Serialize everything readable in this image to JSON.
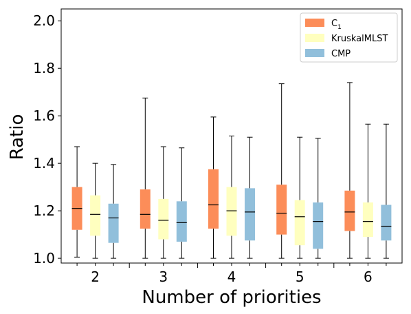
{
  "chart_data": {
    "type": "box",
    "xlabel": "Number of priorities",
    "ylabel": "Ratio",
    "ylim": [
      0.98,
      2.05
    ],
    "yticks": [
      "1.0",
      "1.2",
      "1.4",
      "1.6",
      "1.8",
      "2.0"
    ],
    "categories": [
      "2",
      "3",
      "4",
      "5",
      "6"
    ],
    "legend": {
      "placement": "top-right"
    },
    "series": [
      {
        "name": "C",
        "name_subscript": "1",
        "color": "#fc8d59",
        "boxes": [
          {
            "whislo": 1.005,
            "q1": 1.12,
            "med": 1.21,
            "q3": 1.3,
            "whishi": 1.47
          },
          {
            "whislo": 1.0,
            "q1": 1.125,
            "med": 1.185,
            "q3": 1.29,
            "whishi": 1.675
          },
          {
            "whislo": 1.0,
            "q1": 1.125,
            "med": 1.225,
            "q3": 1.375,
            "whishi": 1.595
          },
          {
            "whislo": 1.0,
            "q1": 1.1,
            "med": 1.19,
            "q3": 1.31,
            "whishi": 1.735
          },
          {
            "whislo": 1.0,
            "q1": 1.115,
            "med": 1.195,
            "q3": 1.285,
            "whishi": 1.74
          }
        ]
      },
      {
        "name": "KruskalMLST",
        "color": "#ffffbf",
        "boxes": [
          {
            "whislo": 1.0,
            "q1": 1.095,
            "med": 1.185,
            "q3": 1.265,
            "whishi": 1.4
          },
          {
            "whislo": 1.0,
            "q1": 1.08,
            "med": 1.16,
            "q3": 1.25,
            "whishi": 1.47
          },
          {
            "whislo": 1.0,
            "q1": 1.095,
            "med": 1.2,
            "q3": 1.3,
            "whishi": 1.515
          },
          {
            "whislo": 1.0,
            "q1": 1.055,
            "med": 1.175,
            "q3": 1.245,
            "whishi": 1.51
          },
          {
            "whislo": 1.0,
            "q1": 1.09,
            "med": 1.155,
            "q3": 1.235,
            "whishi": 1.565
          }
        ]
      },
      {
        "name": "CMP",
        "color": "#91bfdb",
        "boxes": [
          {
            "whislo": 1.0,
            "q1": 1.065,
            "med": 1.17,
            "q3": 1.23,
            "whishi": 1.395
          },
          {
            "whislo": 1.0,
            "q1": 1.07,
            "med": 1.15,
            "q3": 1.24,
            "whishi": 1.465
          },
          {
            "whislo": 1.0,
            "q1": 1.075,
            "med": 1.195,
            "q3": 1.295,
            "whishi": 1.51
          },
          {
            "whislo": 1.0,
            "q1": 1.04,
            "med": 1.155,
            "q3": 1.235,
            "whishi": 1.505
          },
          {
            "whislo": 1.0,
            "q1": 1.075,
            "med": 1.135,
            "q3": 1.225,
            "whishi": 1.565
          }
        ]
      }
    ]
  }
}
